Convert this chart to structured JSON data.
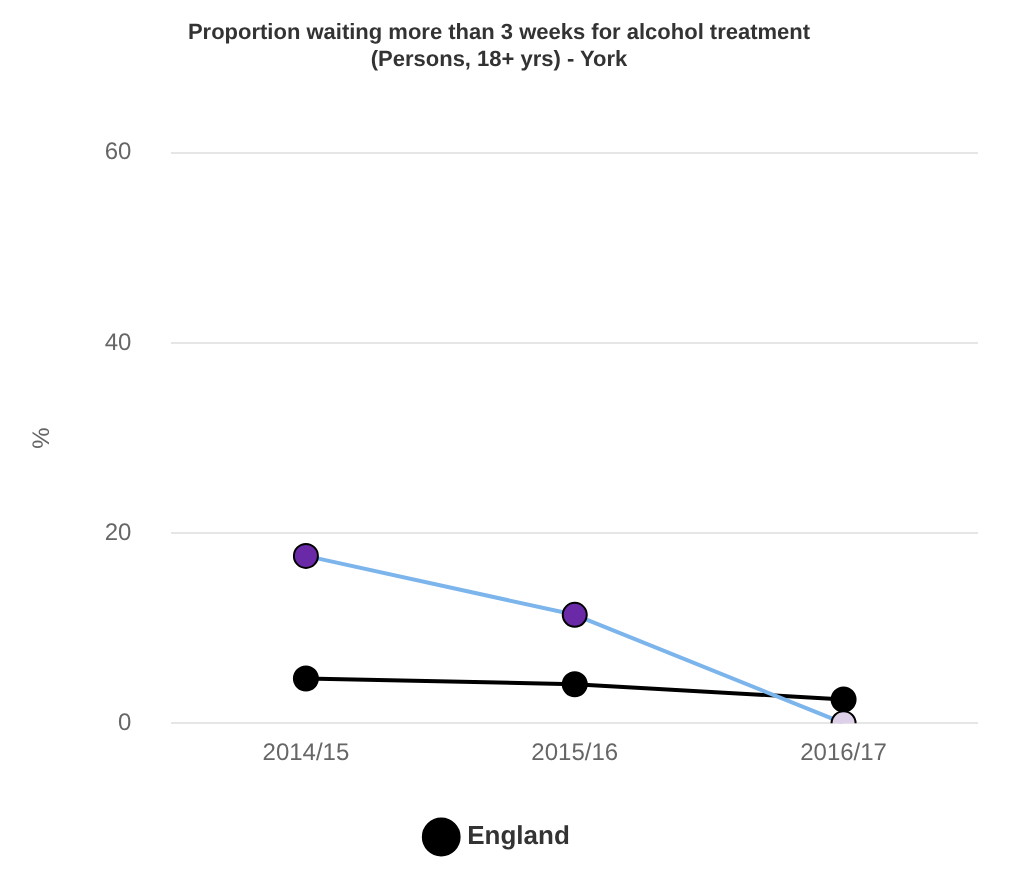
{
  "chart_data": {
    "type": "line",
    "title": [
      "Proportion waiting more than 3 weeks for alcohol treatment",
      "(Persons, 18+ yrs) - York"
    ],
    "ylabel": "%",
    "categories": [
      "2014/15",
      "2015/16",
      "2016/17"
    ],
    "series": [
      {
        "color": "#7cb5ec",
        "colors": [
          "#6a2aa8",
          "#6a2aa8",
          "#ddd0e8"
        ],
        "values": [
          17.6,
          11.4,
          0
        ]
      },
      {
        "name": "England",
        "color": "#000000",
        "values": [
          4.7,
          4.1,
          2.5
        ]
      }
    ],
    "ylim": [
      0,
      60
    ],
    "yticks": [
      0,
      20,
      40,
      60
    ],
    "grid": "y",
    "legend": "bottom",
    "marker": "circle",
    "line_style": "solid"
  }
}
